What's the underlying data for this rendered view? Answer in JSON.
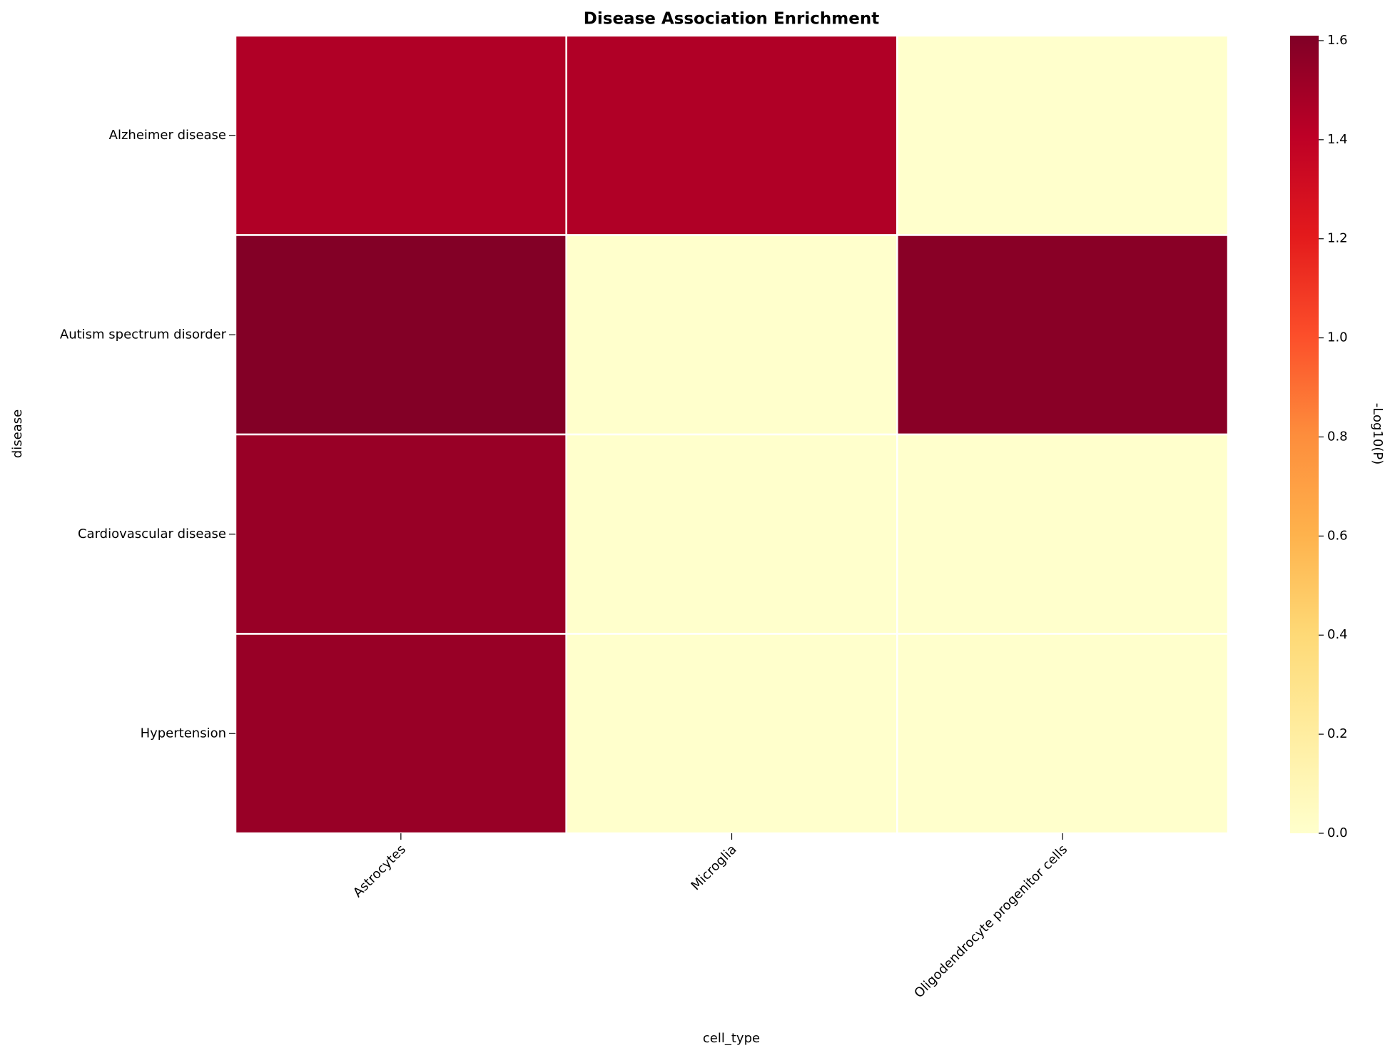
{
  "chart_data": {
    "type": "heatmap",
    "title": "Disease Association Enrichment",
    "xlabel": "cell_type",
    "ylabel": "disease",
    "colorbar_label": "-Log10(P)",
    "x_categories": [
      "Astrocytes",
      "Microglia",
      "Oligodendrocyte progenitor cells"
    ],
    "y_categories": [
      "Alzheimer disease",
      "Autism spectrum disorder",
      "Cardiovascular disease",
      "Hypertension"
    ],
    "values": [
      [
        1.45,
        1.45,
        0
      ],
      [
        1.6,
        0,
        1.58
      ],
      [
        1.53,
        0,
        0
      ],
      [
        1.53,
        0,
        0
      ]
    ],
    "colormap": [
      "#ffffcc",
      "#ffeda0",
      "#fed976",
      "#feb24c",
      "#fd8d3c",
      "#fc4e2a",
      "#e31a1c",
      "#bd0026",
      "#800026"
    ],
    "zlim": [
      0,
      1.61
    ],
    "zticks": [
      {
        "value": 0,
        "label": "0.0"
      },
      {
        "value": 0.2,
        "label": "0.2"
      },
      {
        "value": 0.4,
        "label": "0.4"
      },
      {
        "value": 0.6,
        "label": "0.6"
      },
      {
        "value": 0.8,
        "label": "0.8"
      },
      {
        "value": 1,
        "label": "1.0"
      },
      {
        "value": 1.2,
        "label": "1.2"
      },
      {
        "value": 1.4,
        "label": "1.4"
      },
      {
        "value": 1.6,
        "label": "1.6"
      }
    ]
  }
}
